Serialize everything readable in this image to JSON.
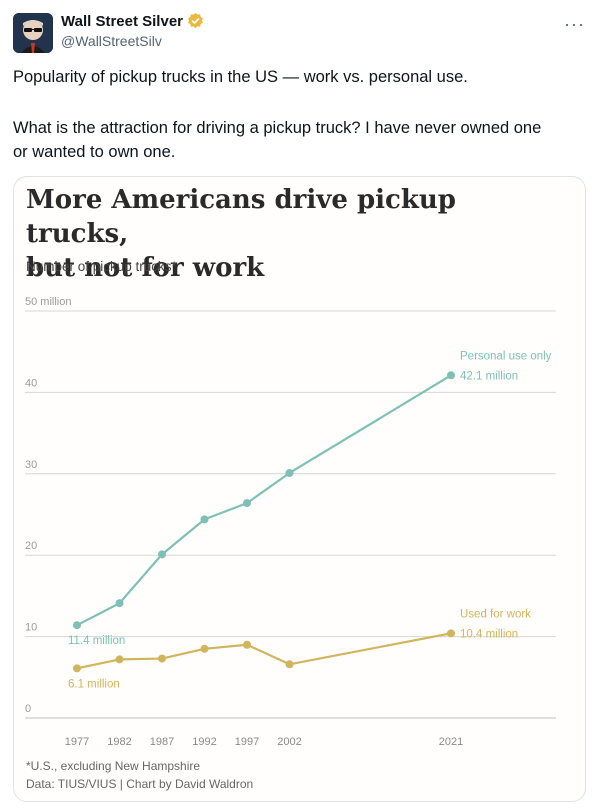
{
  "tweet": {
    "display_name": "Wall Street Silver",
    "handle": "@WallStreetSilv",
    "more_icon": "more-dots-icon",
    "verified_color": "#e8b93c",
    "text_line1": "Popularity of pickup trucks in the US — work vs. personal use.",
    "text_line2": "What is the attraction for driving a pickup truck? I have never owned one",
    "text_line3": "or wanted to own one."
  },
  "chart_data": {
    "type": "line",
    "title_line1": "More Americans drive pickup trucks,",
    "title_line2": "but not for work",
    "subtitle": "Number of pickup trucks*",
    "x": [
      1977,
      1982,
      1987,
      1992,
      1997,
      2002,
      2021
    ],
    "x_tick_labels": [
      "1977",
      "1982",
      "1987",
      "1992",
      "1997",
      "2002",
      "2021"
    ],
    "y_tick_labels": [
      "0",
      "10",
      "20",
      "30",
      "40",
      "50 million"
    ],
    "ylim": [
      0,
      50
    ],
    "grid": true,
    "series": [
      {
        "name": "Personal use only",
        "color": "#7ec0b3",
        "values": [
          11.4,
          14.1,
          20.1,
          24.4,
          26.4,
          30.1,
          42.1
        ],
        "start_label": "11.4 million",
        "end_label": "42.1 million"
      },
      {
        "name": "Used for work",
        "color": "#d0b45e",
        "values": [
          6.1,
          7.2,
          7.3,
          8.5,
          9.0,
          6.6,
          10.4
        ],
        "start_label": "6.1 million",
        "end_label": "10.4 million"
      }
    ],
    "footnote": "*U.S., excluding New Hampshire",
    "source": "Data: TIUS/VIUS | Chart by David Waldron"
  }
}
